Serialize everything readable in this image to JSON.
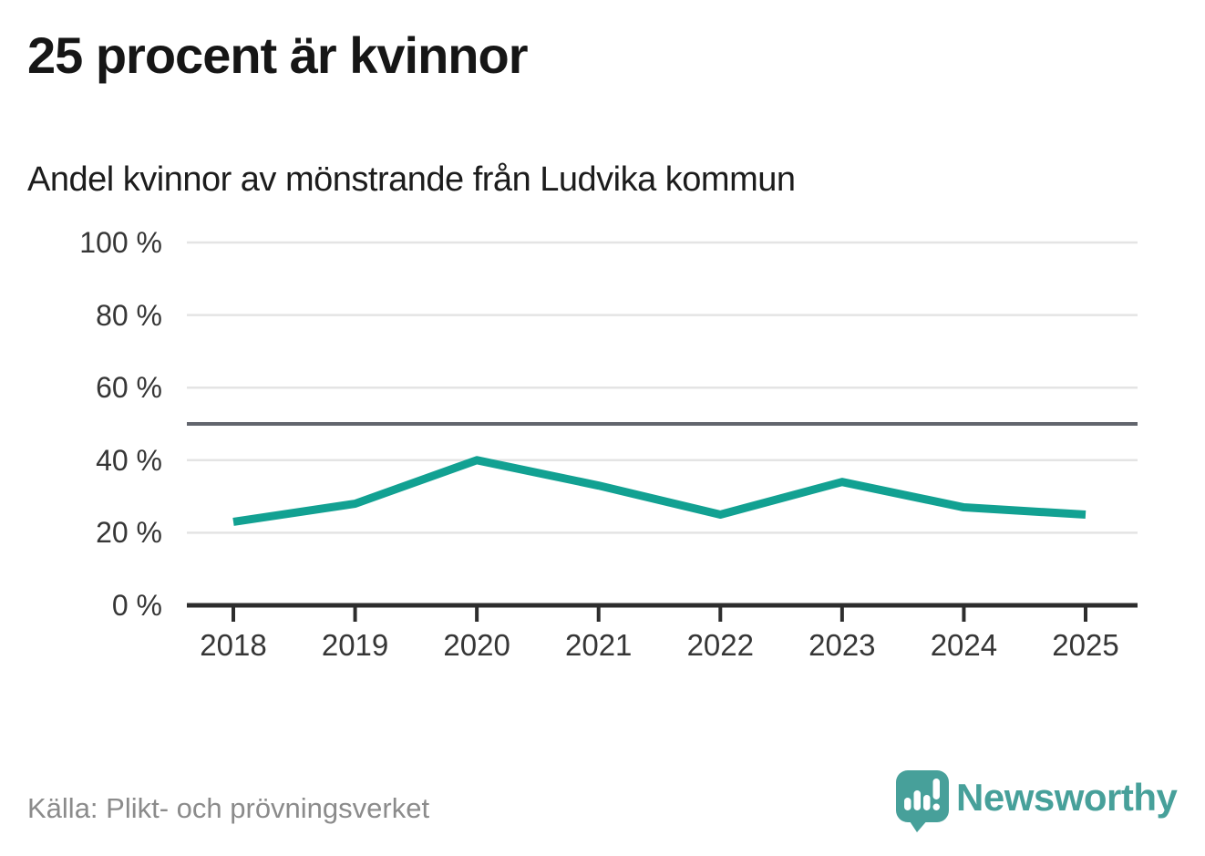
{
  "header": {
    "title": "25 procent är kvinnor",
    "subtitle": "Andel kvinnor av mönstrande från Ludvika kommun"
  },
  "footer": {
    "source": "Källa: Plikt- och prövningsverket",
    "brand": "Newsworthy"
  },
  "colors": {
    "line": "#12a192",
    "grid": "#e4e4e4",
    "reference_line": "#62656d",
    "axis": "#2d2d2d",
    "brand": "#47a09a"
  },
  "chart_data": {
    "type": "line",
    "title": "25 procent är kvinnor",
    "subtitle": "Andel kvinnor av mönstrande från Ludvika kommun",
    "x": [
      "2018",
      "2019",
      "2020",
      "2021",
      "2022",
      "2023",
      "2024",
      "2025"
    ],
    "series": [
      {
        "name": "Andel kvinnor av mönstrande",
        "values": [
          23,
          28,
          40,
          33,
          25,
          34,
          27,
          25
        ]
      }
    ],
    "unit": "%",
    "xlabel": "",
    "ylabel": "",
    "ylim": [
      0,
      100
    ],
    "yticks": [
      {
        "value": 0,
        "label": "0 %"
      },
      {
        "value": 20,
        "label": "20 %"
      },
      {
        "value": 40,
        "label": "40 %"
      },
      {
        "value": 60,
        "label": "60 %"
      },
      {
        "value": 80,
        "label": "80 %"
      },
      {
        "value": 100,
        "label": "100 %"
      }
    ],
    "reference_line": {
      "value": 50
    },
    "grid": "horizontal",
    "legend": "none"
  }
}
